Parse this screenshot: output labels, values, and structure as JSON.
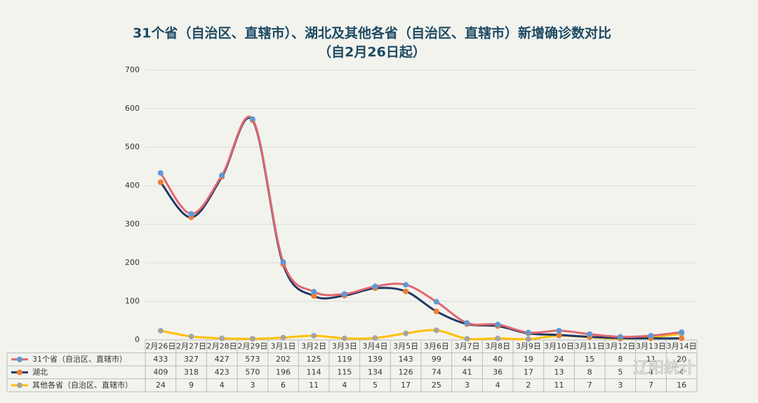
{
  "chart_data": {
    "type": "line",
    "title": "31个省（自治区、直辖市）、湖北及其他各省（自治区、直辖市）新增确诊数对比",
    "subtitle": "（自2月26日起）",
    "categories": [
      "2月26日",
      "2月27日",
      "2月28日",
      "2月29日",
      "3月1日",
      "3月2日",
      "3月3日",
      "3月4日",
      "3月5日",
      "3月6日",
      "3月7日",
      "3月8日",
      "3月9日",
      "3月10日",
      "3月11日",
      "3月12日",
      "3月13日",
      "3月14日"
    ],
    "series": [
      {
        "name": "31个省（自治区、直辖市）",
        "color": "#e06870",
        "marker_color": "#5b9bd5",
        "values": [
          433,
          327,
          427,
          573,
          202,
          125,
          119,
          139,
          143,
          99,
          44,
          40,
          19,
          24,
          15,
          8,
          11,
          20
        ]
      },
      {
        "name": "湖北",
        "color": "#1f3864",
        "marker_color": "#ed7d31",
        "values": [
          409,
          318,
          423,
          570,
          196,
          114,
          115,
          134,
          126,
          74,
          41,
          36,
          17,
          13,
          8,
          5,
          4,
          4
        ]
      },
      {
        "name": "其他各省（自治区、直辖市）",
        "color": "#ffc000",
        "marker_color": "#a5a5a5",
        "values": [
          24,
          9,
          4,
          3,
          6,
          11,
          4,
          5,
          17,
          25,
          3,
          4,
          2,
          11,
          7,
          3,
          7,
          16
        ]
      }
    ],
    "ylim": [
      0,
      700
    ],
    "yticks": [
      0,
      100,
      200,
      300,
      400,
      500,
      600,
      700
    ],
    "grid": true,
    "smooth": true,
    "watermark": "辽阳统计"
  }
}
